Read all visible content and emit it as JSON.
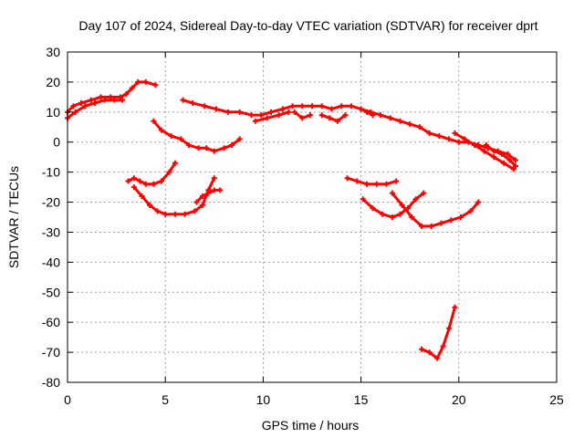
{
  "chart_data": {
    "type": "line",
    "title": "Day 107 of 2024, Sidereal Day-to-day VTEC variation (SDTVAR) for receiver dprt",
    "xlabel": "GPS time / hours",
    "ylabel": "SDTVAR / TECUs",
    "xlim": [
      0,
      25
    ],
    "ylim": [
      -80,
      30
    ],
    "xticks": [
      0,
      5,
      10,
      15,
      20,
      25
    ],
    "yticks": [
      -80,
      -70,
      -60,
      -50,
      -40,
      -30,
      -20,
      -10,
      0,
      10,
      20,
      30
    ],
    "x_tick_labels": [
      "0",
      "5",
      "10",
      "15",
      "20",
      "25"
    ],
    "y_tick_labels": [
      "-80",
      "-70",
      "-60",
      "-50",
      "-40",
      "-30",
      "-20",
      "-10",
      "0",
      "10",
      "20",
      "30"
    ],
    "grid": true,
    "legend": "none",
    "color": "#ff0000",
    "series": [
      {
        "name": "arc-1-upper",
        "x": [
          0.0,
          0.3,
          0.7,
          1.2,
          1.7,
          2.2,
          2.7,
          3.0,
          3.3,
          3.6,
          4.0,
          4.5
        ],
        "y": [
          10,
          12,
          13,
          14,
          15,
          15,
          15,
          16,
          18,
          20,
          20,
          19
        ]
      },
      {
        "name": "arc-1-lower",
        "x": [
          0.0,
          0.4,
          0.9,
          1.4,
          1.9,
          2.4,
          2.8
        ],
        "y": [
          8,
          10,
          12,
          13,
          14,
          14,
          14
        ]
      },
      {
        "name": "arc-2",
        "x": [
          4.4,
          4.8,
          5.3,
          5.8,
          6.2,
          6.7,
          7.1,
          7.5,
          8.0,
          8.4,
          8.8
        ],
        "y": [
          7,
          4,
          2,
          1,
          -1,
          -2,
          -2,
          -3,
          -2,
          -1,
          1
        ]
      },
      {
        "name": "arc-3",
        "x": [
          3.1,
          3.4,
          3.7,
          4.0,
          4.4,
          4.8,
          5.2,
          5.5
        ],
        "y": [
          -13,
          -12,
          -13,
          -14,
          -14,
          -13,
          -10,
          -7
        ]
      },
      {
        "name": "arc-4",
        "x": [
          3.4,
          3.8,
          4.2,
          4.6,
          5.0,
          5.5,
          6.0,
          6.5,
          6.9,
          7.2,
          7.5
        ],
        "y": [
          -15,
          -18,
          -21,
          -23,
          -24,
          -24,
          -24,
          -23,
          -21,
          -16,
          -12
        ]
      },
      {
        "name": "arc-5",
        "x": [
          6.6,
          6.9,
          7.2,
          7.5,
          7.8
        ],
        "y": [
          -20,
          -18,
          -17,
          -16,
          -16
        ]
      },
      {
        "name": "arc-6",
        "x": [
          5.9,
          6.4,
          7.0,
          7.6,
          8.2,
          8.8,
          9.4,
          9.9,
          10.4,
          11.0,
          11.5,
          12.0,
          12.5,
          13.0,
          13.5,
          14.0,
          14.5,
          15.0,
          15.5,
          16.0,
          16.5,
          17.0,
          17.5,
          18.0,
          18.5,
          19.0,
          19.5,
          20.0,
          20.5,
          21.0,
          21.5,
          22.0,
          22.5,
          22.9
        ],
        "y": [
          14,
          13,
          12,
          11,
          10,
          10,
          9,
          9,
          10,
          11,
          12,
          12,
          12,
          12,
          11,
          12,
          12,
          11,
          10,
          9,
          8,
          7,
          6,
          5,
          3,
          2,
          1,
          0,
          0,
          -1,
          -2,
          -3,
          -4,
          -6
        ]
      },
      {
        "name": "arc-6-scatter-a",
        "x": [
          9.6,
          10.2,
          10.8,
          11.3
        ],
        "y": [
          7,
          8,
          9,
          10
        ]
      },
      {
        "name": "arc-6-scatter-b",
        "x": [
          11.6,
          12.0,
          12.4
        ],
        "y": [
          10,
          8,
          9
        ]
      },
      {
        "name": "arc-6-scatter-c",
        "x": [
          13.0,
          13.4,
          13.8,
          14.2
        ],
        "y": [
          9,
          8,
          7,
          9
        ]
      },
      {
        "name": "arc-6-scatter-d",
        "x": [
          15.0,
          15.3,
          15.6
        ],
        "y": [
          11,
          10,
          9
        ]
      },
      {
        "name": "arc-7",
        "x": [
          19.8,
          20.3,
          20.8,
          21.3,
          21.8,
          22.3,
          22.8
        ],
        "y": [
          3,
          1,
          -1,
          -3,
          -5,
          -7,
          -9
        ]
      },
      {
        "name": "arc-8",
        "x": [
          21.4,
          21.8,
          22.2,
          22.6,
          22.9
        ],
        "y": [
          -1,
          -3,
          -4,
          -6,
          -8
        ]
      },
      {
        "name": "arc-9",
        "x": [
          14.3,
          14.8,
          15.3,
          15.8,
          16.3,
          16.8
        ],
        "y": [
          -12,
          -13,
          -14,
          -14,
          -14,
          -13
        ]
      },
      {
        "name": "arc-10",
        "x": [
          15.1,
          15.6,
          16.1,
          16.6,
          17.0,
          17.4,
          17.8,
          18.2
        ],
        "y": [
          -19,
          -22,
          -24,
          -25,
          -24,
          -22,
          -19,
          -17
        ]
      },
      {
        "name": "arc-11",
        "x": [
          16.6,
          17.1,
          17.6,
          18.1,
          18.6,
          19.1,
          19.6,
          20.1,
          20.6,
          21.0
        ],
        "y": [
          -17,
          -21,
          -25,
          -28,
          -28,
          -27,
          -26,
          -25,
          -23,
          -20
        ]
      },
      {
        "name": "arc-12",
        "x": [
          18.1,
          18.5,
          18.9,
          19.2,
          19.5,
          19.8
        ],
        "y": [
          -69,
          -70,
          -72,
          -68,
          -62,
          -55
        ]
      }
    ]
  }
}
